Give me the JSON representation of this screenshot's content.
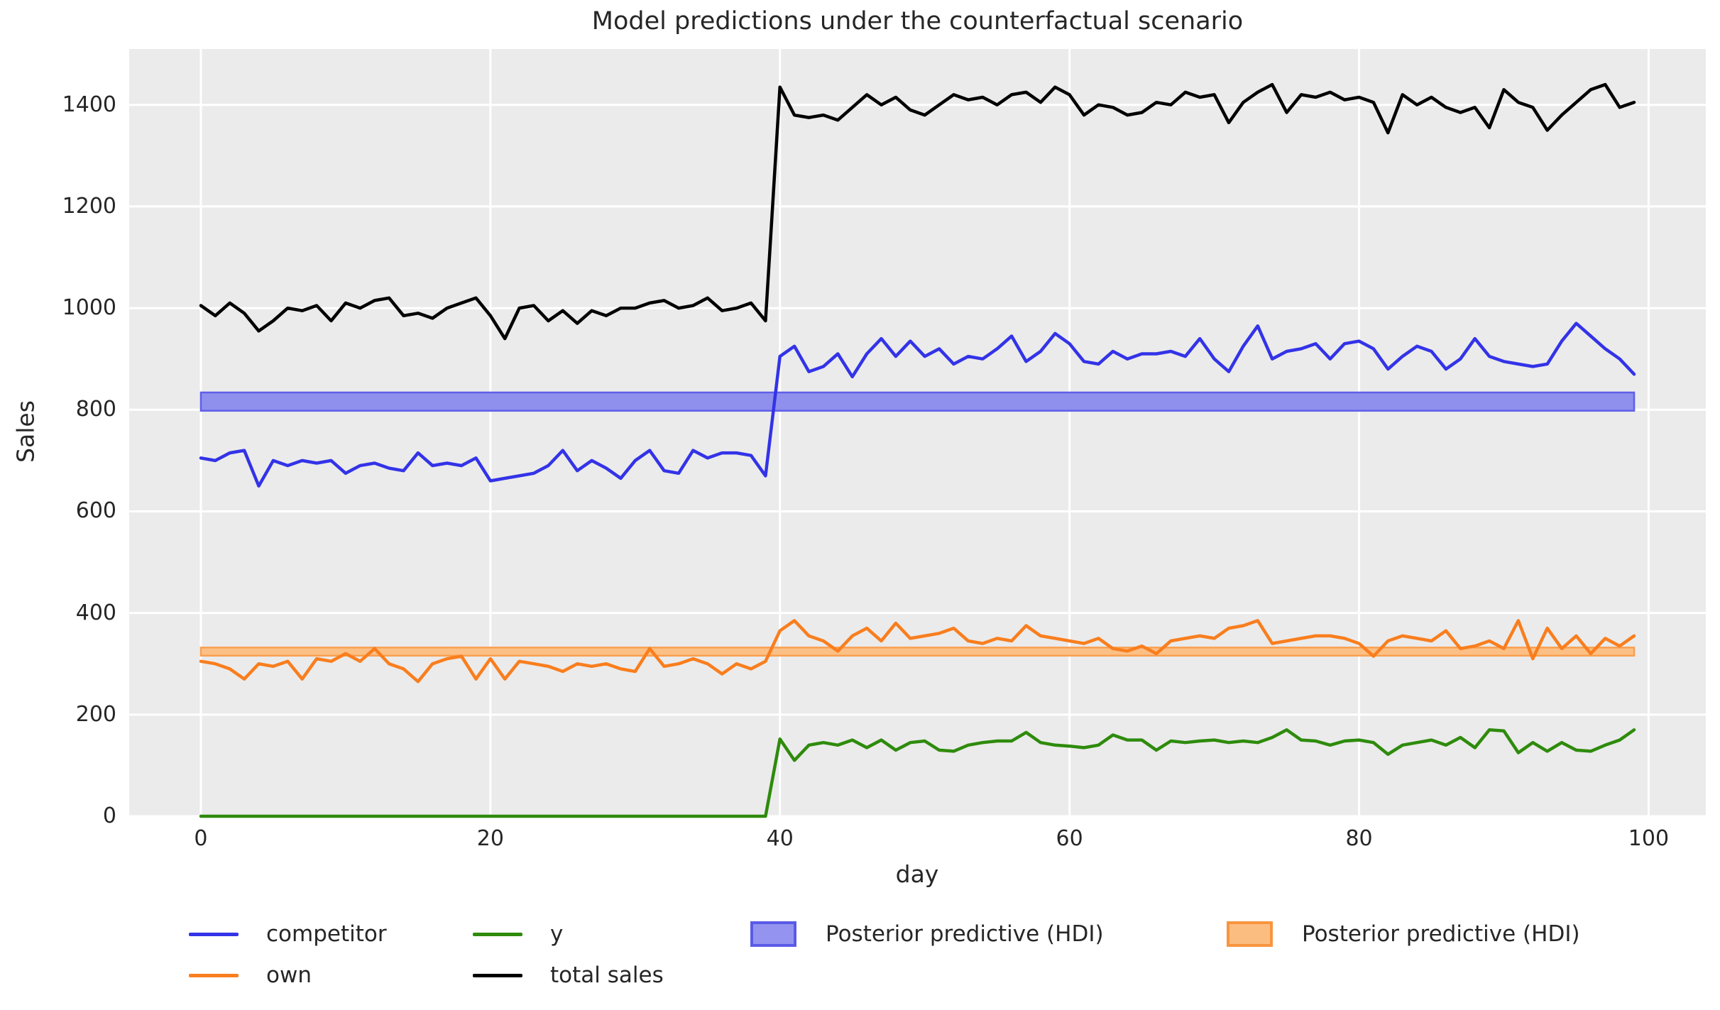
{
  "colors": {
    "figure_bg": "#ffffff",
    "plot_bg": "#ebebeb",
    "grid": "#ffffff",
    "text": "#262626"
  },
  "legend": {
    "entries": [
      {
        "type": "line",
        "color": "#3333e8",
        "label": "competitor"
      },
      {
        "type": "line",
        "color": "#2e8b0c",
        "label": "y"
      },
      {
        "type": "patch",
        "fill": "#9494f0",
        "border": "#5a5ae8",
        "label": "Posterior predictive (HDI)"
      },
      {
        "type": "patch",
        "fill": "#fcbd81",
        "border": "#f8953f",
        "label": "Posterior predictive (HDI)"
      },
      {
        "type": "line",
        "color": "#f97e1e",
        "label": "own"
      },
      {
        "type": "line",
        "color": "#000000",
        "label": "total sales"
      }
    ]
  },
  "chart_data": {
    "type": "line",
    "title": "Model predictions under the counterfactual scenario",
    "xlabel": "day",
    "ylabel": "Sales",
    "x_mode": "day index 0-99, step 1",
    "n_points": 100,
    "xlim": [
      -4.95,
      103.95
    ],
    "ylim": [
      0,
      1510
    ],
    "xticks": [
      0,
      20,
      40,
      60,
      80,
      100
    ],
    "yticks": [
      0,
      200,
      400,
      600,
      800,
      1000,
      1200,
      1400
    ],
    "grid": true,
    "legend_position": "below plot, 2 rows x 4 columns",
    "bands": [
      {
        "name": "posterior-predictive-hdi-competitor",
        "lo": 798,
        "hi": 834,
        "x_start": 0,
        "x_end": 99,
        "fill": "#8f8fee",
        "edge": "#5f5fe8"
      },
      {
        "name": "posterior-predictive-hdi-own",
        "lo": 316,
        "hi": 332,
        "x_start": 0,
        "x_end": 99,
        "fill": "#fcc086",
        "edge": "#f9a052"
      }
    ],
    "series": [
      {
        "name": "competitor",
        "color": "#3333e8",
        "width": 4.5,
        "values": [
          705,
          700,
          715,
          720,
          650,
          700,
          690,
          700,
          695,
          700,
          675,
          690,
          695,
          685,
          680,
          715,
          690,
          695,
          690,
          705,
          660,
          665,
          670,
          675,
          690,
          720,
          680,
          700,
          685,
          665,
          700,
          720,
          680,
          675,
          720,
          705,
          715,
          715,
          710,
          670,
          905,
          925,
          875,
          885,
          910,
          865,
          910,
          940,
          905,
          935,
          905,
          920,
          890,
          905,
          900,
          920,
          945,
          895,
          915,
          950,
          930,
          895,
          890,
          915,
          900,
          910,
          910,
          915,
          905,
          940,
          900,
          875,
          925,
          965,
          900,
          915,
          920,
          930,
          900,
          930,
          935,
          920,
          880,
          905,
          925,
          915,
          880,
          900,
          940,
          905,
          895,
          890,
          885,
          890,
          935,
          970,
          945,
          920,
          900,
          870
        ]
      },
      {
        "name": "own",
        "color": "#f97e1e",
        "width": 4.5,
        "values": [
          305,
          300,
          290,
          270,
          300,
          295,
          305,
          270,
          310,
          305,
          320,
          305,
          330,
          300,
          290,
          265,
          300,
          310,
          315,
          270,
          310,
          270,
          305,
          300,
          295,
          285,
          300,
          295,
          300,
          290,
          285,
          330,
          295,
          300,
          310,
          300,
          280,
          300,
          290,
          305,
          365,
          385,
          355,
          345,
          325,
          355,
          370,
          345,
          380,
          350,
          355,
          360,
          370,
          345,
          340,
          350,
          345,
          375,
          355,
          350,
          345,
          340,
          350,
          330,
          325,
          335,
          320,
          345,
          350,
          355,
          350,
          370,
          375,
          385,
          340,
          345,
          350,
          355,
          355,
          350,
          340,
          315,
          345,
          355,
          350,
          345,
          365,
          330,
          335,
          345,
          330,
          385,
          310,
          370,
          330,
          355,
          320,
          350,
          335,
          355
        ]
      },
      {
        "name": "y",
        "color": "#2e8b0c",
        "width": 4.5,
        "values": [
          0,
          0,
          0,
          0,
          0,
          0,
          0,
          0,
          0,
          0,
          0,
          0,
          0,
          0,
          0,
          0,
          0,
          0,
          0,
          0,
          0,
          0,
          0,
          0,
          0,
          0,
          0,
          0,
          0,
          0,
          0,
          0,
          0,
          0,
          0,
          0,
          0,
          0,
          0,
          0,
          152,
          110,
          140,
          145,
          140,
          150,
          135,
          150,
          130,
          145,
          148,
          130,
          128,
          140,
          145,
          148,
          148,
          165,
          145,
          140,
          138,
          135,
          140,
          160,
          150,
          150,
          130,
          148,
          145,
          148,
          150,
          145,
          148,
          145,
          155,
          170,
          150,
          148,
          140,
          148,
          150,
          145,
          122,
          140,
          145,
          150,
          140,
          155,
          135,
          170,
          168,
          125,
          145,
          128,
          145,
          130,
          128,
          140,
          150,
          170
        ]
      },
      {
        "name": "total sales",
        "color": "#000000",
        "width": 4.5,
        "values": [
          1005,
          985,
          1010,
          990,
          955,
          975,
          1000,
          995,
          1005,
          975,
          1010,
          1000,
          1015,
          1020,
          985,
          990,
          980,
          1000,
          1010,
          1020,
          985,
          940,
          1000,
          1005,
          975,
          995,
          970,
          995,
          985,
          1000,
          1000,
          1010,
          1015,
          1000,
          1005,
          1020,
          995,
          1000,
          1010,
          975,
          1435,
          1380,
          1375,
          1380,
          1370,
          1395,
          1420,
          1400,
          1415,
          1390,
          1380,
          1400,
          1420,
          1410,
          1415,
          1400,
          1420,
          1425,
          1405,
          1435,
          1420,
          1380,
          1400,
          1395,
          1380,
          1385,
          1405,
          1400,
          1425,
          1415,
          1420,
          1365,
          1405,
          1425,
          1440,
          1385,
          1420,
          1415,
          1425,
          1410,
          1415,
          1405,
          1345,
          1420,
          1400,
          1415,
          1395,
          1385,
          1395,
          1355,
          1430,
          1405,
          1395,
          1350,
          1380,
          1405,
          1430,
          1440,
          1395,
          1405
        ]
      }
    ]
  }
}
